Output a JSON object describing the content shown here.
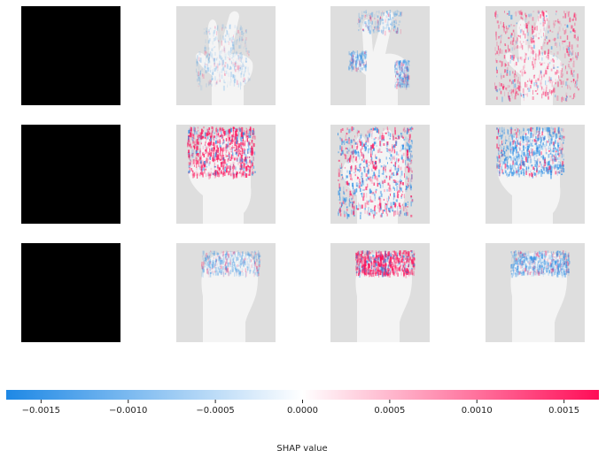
{
  "chart_data": {
    "type": "heatmap",
    "title": "",
    "grid": false,
    "rows": 3,
    "columns": 4,
    "panel_layout": "3 rows x 4 columns; column 1 = input image, columns 2-4 = per-class SHAP overlays",
    "rows_data": [
      {
        "input_image": "black",
        "subject": "hand-two-fingers",
        "overlays": [
          {
            "dominant_sign": "negative",
            "intensity": 0.25,
            "focus": "fingertips and palm edge"
          },
          {
            "dominant_sign": "negative",
            "intensity": 0.45,
            "focus": "fingertips"
          },
          {
            "dominant_sign": "positive",
            "intensity": 0.6,
            "focus": "fingers and palm outline"
          }
        ]
      },
      {
        "input_image": "black",
        "subject": "open-hand",
        "overlays": [
          {
            "dominant_sign": "positive",
            "intensity": 0.9,
            "focus": "fingers"
          },
          {
            "dominant_sign": "mixed",
            "intensity": 0.85,
            "focus": "fingers and palm"
          },
          {
            "dominant_sign": "negative",
            "intensity": 0.75,
            "focus": "fingers"
          }
        ]
      },
      {
        "input_image": "black",
        "subject": "fist",
        "overlays": [
          {
            "dominant_sign": "negative",
            "intensity": 0.35,
            "focus": "top of fist"
          },
          {
            "dominant_sign": "positive",
            "intensity": 0.75,
            "focus": "top of fist"
          },
          {
            "dominant_sign": "negative",
            "intensity": 0.5,
            "focus": "top of fist"
          }
        ]
      }
    ],
    "colorbar": {
      "label": "SHAP value",
      "min": -0.0017,
      "max": 0.0017,
      "ticks": [
        -0.0015,
        -0.001,
        -0.0005,
        0.0,
        0.0005,
        0.001,
        0.0015
      ],
      "tick_labels": [
        "−0.0015",
        "−0.0010",
        "−0.0005",
        "0.0000",
        "0.0005",
        "0.0010",
        "0.0015"
      ],
      "colors": {
        "negative": "#1e88e5",
        "zero": "#ffffff",
        "positive": "#ff0d57"
      }
    }
  }
}
